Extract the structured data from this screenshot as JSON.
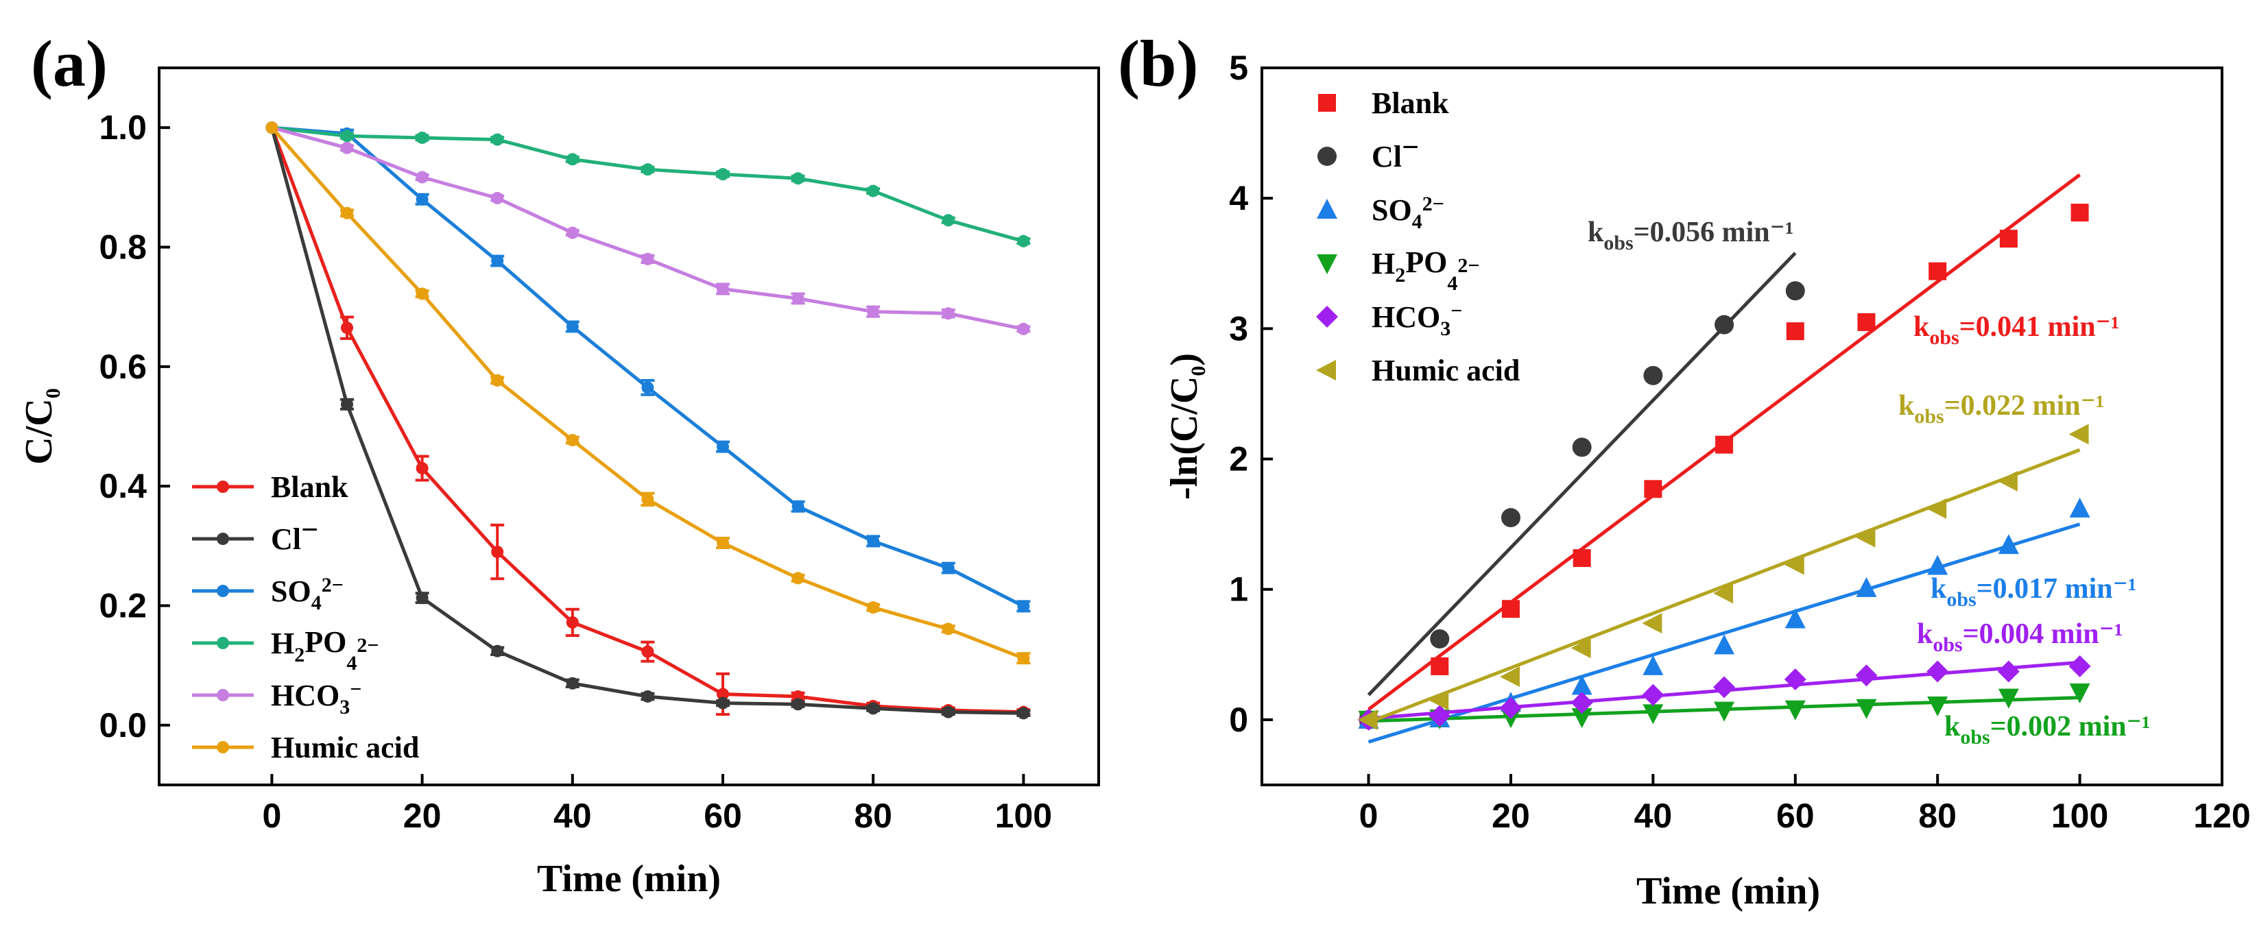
{
  "chart_data": [
    {
      "panel": "(a)",
      "type": "line",
      "xlabel": "Time (min)",
      "ylabel": "C/C0",
      "xlim": [
        -15,
        110
      ],
      "ylim": [
        -0.1,
        1.1
      ],
      "xticks": [
        0,
        20,
        40,
        60,
        80,
        100
      ],
      "yticks": [
        0.0,
        0.2,
        0.4,
        0.6,
        0.8,
        1.0
      ],
      "legend_position": "bottom-left",
      "x": [
        0,
        10,
        20,
        30,
        40,
        50,
        60,
        70,
        80,
        90,
        100
      ],
      "series": [
        {
          "name": "Blank",
          "color": "#e8211d",
          "values": [
            1.0,
            0.665,
            0.43,
            0.29,
            0.172,
            0.123,
            0.052,
            0.048,
            0.032,
            0.025,
            0.022
          ],
          "errors": [
            0,
            0.018,
            0.02,
            0.045,
            0.022,
            0.016,
            0.034,
            0.006,
            0.005,
            0.004,
            0.004
          ]
        },
        {
          "name": "Cl−",
          "color": "#3a3a3a",
          "values": [
            1.0,
            0.537,
            0.213,
            0.124,
            0.07,
            0.048,
            0.037,
            0.035,
            0.028,
            0.022,
            0.02
          ],
          "errors": [
            0,
            0.008,
            0.008,
            0.006,
            0.006,
            0.005,
            0.004,
            0.004,
            0.004,
            0.004,
            0.004
          ]
        },
        {
          "name": "SO42−",
          "color": "#1b7fd9",
          "values": [
            1.0,
            0.99,
            0.88,
            0.777,
            0.667,
            0.565,
            0.466,
            0.366,
            0.308,
            0.263,
            0.199
          ],
          "errors": [
            0,
            0.006,
            0.008,
            0.008,
            0.008,
            0.012,
            0.008,
            0.008,
            0.008,
            0.008,
            0.008
          ]
        },
        {
          "name": "H2PO42−",
          "color": "#22b07a",
          "values": [
            1.0,
            0.986,
            0.983,
            0.98,
            0.947,
            0.93,
            0.922,
            0.915,
            0.894,
            0.845,
            0.81
          ],
          "errors": [
            0,
            0.004,
            0.004,
            0.004,
            0.004,
            0.004,
            0.004,
            0.004,
            0.004,
            0.004,
            0.004
          ]
        },
        {
          "name": "HCO3−",
          "color": "#c67ee0",
          "values": [
            1.0,
            0.966,
            0.917,
            0.882,
            0.824,
            0.78,
            0.73,
            0.714,
            0.692,
            0.689,
            0.663
          ],
          "errors": [
            0,
            0.004,
            0.004,
            0.004,
            0.004,
            0.006,
            0.008,
            0.008,
            0.008,
            0.006,
            0.004
          ]
        },
        {
          "name": "Humic acid",
          "color": "#e8a00f",
          "values": [
            1.0,
            0.857,
            0.722,
            0.577,
            0.477,
            0.378,
            0.305,
            0.246,
            0.197,
            0.161,
            0.112
          ],
          "errors": [
            0,
            0.005,
            0.005,
            0.005,
            0.005,
            0.01,
            0.008,
            0.005,
            0.005,
            0.005,
            0.008
          ]
        }
      ]
    },
    {
      "panel": "(b)",
      "type": "scatter",
      "xlabel": "Time (min)",
      "ylabel": "-ln(C/C0)",
      "xlim": [
        -15,
        120
      ],
      "ylim": [
        -0.5,
        5
      ],
      "xticks": [
        0,
        20,
        40,
        60,
        80,
        100,
        120
      ],
      "yticks": [
        0,
        1,
        2,
        3,
        4,
        5
      ],
      "legend_position": "top-left",
      "series": [
        {
          "name": "Blank",
          "color": "#ee1c1c",
          "marker": "square",
          "x": [
            0,
            10,
            20,
            30,
            40,
            50,
            60,
            70,
            80,
            90,
            100
          ],
          "values": [
            0,
            0.41,
            0.85,
            1.24,
            1.77,
            2.11,
            2.98,
            3.05,
            3.44,
            3.69,
            3.89
          ],
          "fit": {
            "x": [
              0,
              100
            ],
            "y": [
              0.08,
              4.18
            ]
          },
          "label": "k",
          "label_sub": "obs",
          "label_rest": "=0.041 min⁻¹"
        },
        {
          "name": "Cl−",
          "color": "#3a3a3a",
          "marker": "circle",
          "x": [
            0,
            10,
            20,
            30,
            40,
            50,
            60
          ],
          "values": [
            0,
            0.62,
            1.55,
            2.09,
            2.64,
            3.03,
            3.29
          ],
          "fit": {
            "x": [
              0,
              60
            ],
            "y": [
              0.19,
              3.58
            ]
          },
          "label": "k",
          "label_sub": "obs",
          "label_rest": "=0.056 min⁻¹"
        },
        {
          "name": "SO42−",
          "color": "#1c7fe8",
          "marker": "triangle-up",
          "x": [
            0,
            10,
            20,
            30,
            40,
            50,
            60,
            70,
            80,
            90,
            100
          ],
          "values": [
            0,
            0.01,
            0.13,
            0.26,
            0.41,
            0.57,
            0.77,
            1.01,
            1.18,
            1.34,
            1.62
          ],
          "fit": {
            "x": [
              0,
              100
            ],
            "y": [
              -0.17,
              1.5
            ]
          },
          "label": "k",
          "label_sub": "obs",
          "label_rest": "=0.017 min⁻¹"
        },
        {
          "name": "H2PO42−",
          "color": "#12a21e",
          "marker": "triangle-down",
          "x": [
            0,
            10,
            20,
            30,
            40,
            50,
            60,
            70,
            80,
            90,
            100
          ],
          "values": [
            0,
            0.01,
            0.02,
            0.02,
            0.05,
            0.07,
            0.08,
            0.09,
            0.11,
            0.17,
            0.21
          ],
          "fit": {
            "x": [
              0,
              100
            ],
            "y": [
              -0.01,
              0.17
            ]
          },
          "label": "k",
          "label_sub": "obs",
          "label_rest": "=0.002 min⁻¹"
        },
        {
          "name": "HCO3−",
          "color": "#a020f0",
          "marker": "diamond",
          "x": [
            0,
            10,
            20,
            30,
            40,
            50,
            60,
            70,
            80,
            90,
            100
          ],
          "values": [
            0,
            0.03,
            0.09,
            0.13,
            0.19,
            0.25,
            0.31,
            0.34,
            0.37,
            0.37,
            0.41
          ],
          "fit": {
            "x": [
              0,
              100
            ],
            "y": [
              0.01,
              0.44
            ]
          },
          "label": "k",
          "label_sub": "obs",
          "label_rest": "=0.004 min⁻¹"
        },
        {
          "name": "Humic acid",
          "color": "#b3a51f",
          "marker": "triangle-left",
          "x": [
            0,
            10,
            20,
            30,
            40,
            50,
            60,
            70,
            80,
            90,
            100
          ],
          "values": [
            0,
            0.15,
            0.33,
            0.55,
            0.74,
            0.97,
            1.19,
            1.4,
            1.62,
            1.83,
            2.19
          ],
          "fit": {
            "x": [
              0,
              100
            ],
            "y": [
              -0.02,
              2.07
            ]
          },
          "label": "k",
          "label_sub": "obs",
          "label_rest": "=0.022 min⁻¹"
        }
      ]
    }
  ]
}
